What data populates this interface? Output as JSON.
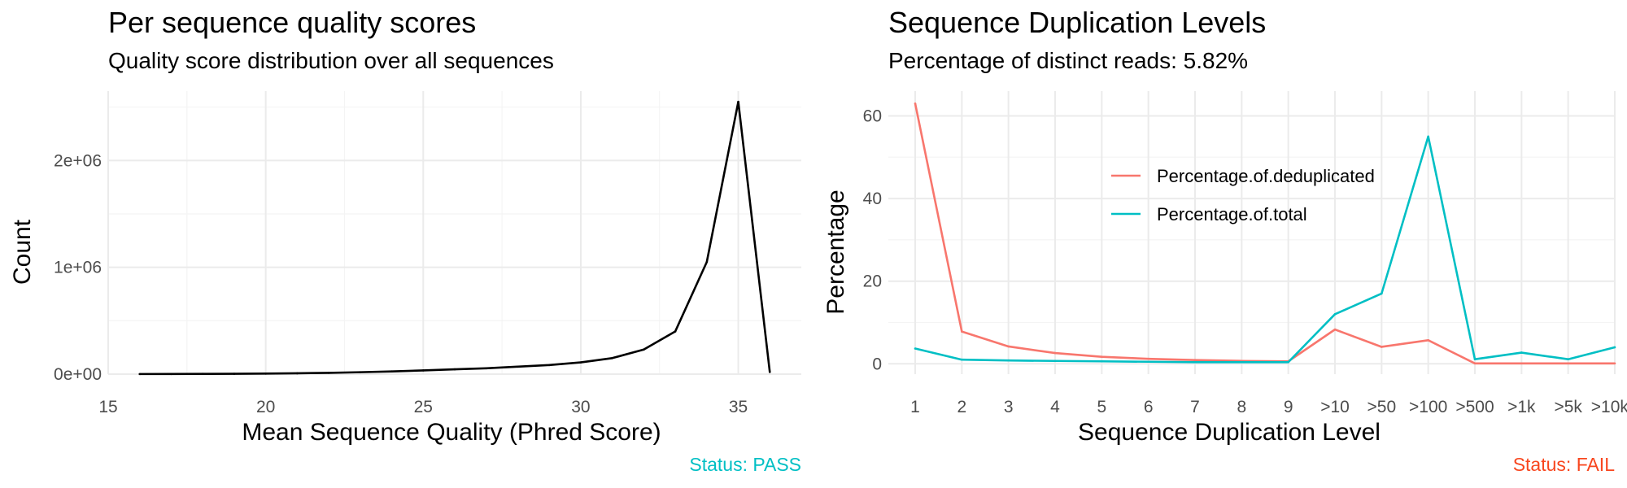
{
  "chart_data": [
    {
      "type": "line",
      "title": "Per sequence quality scores",
      "subtitle": "Quality score distribution over all sequences",
      "xlabel": "Mean Sequence Quality (Phred Score)",
      "ylabel": "Count",
      "xlim": [
        15,
        37
      ],
      "ylim": [
        0,
        2650000
      ],
      "x_ticks": [
        15,
        20,
        25,
        30,
        35
      ],
      "x_tick_labels": [
        "15",
        "20",
        "25",
        "30",
        "35"
      ],
      "y_ticks": [
        0,
        1000000,
        2000000
      ],
      "y_tick_labels": [
        "0e+00",
        "1e+06",
        "2e+06"
      ],
      "grid": true,
      "status": "Status: PASS",
      "status_color": "#00BFC4",
      "series": [
        {
          "color": "#000000",
          "x": [
            16,
            17,
            18,
            19,
            20,
            21,
            22,
            23,
            24,
            25,
            26,
            27,
            28,
            29,
            30,
            31,
            32,
            33,
            34,
            35,
            36
          ],
          "y": [
            1000,
            1500,
            2000,
            3000,
            5000,
            8000,
            12000,
            18000,
            25000,
            35000,
            45000,
            55000,
            70000,
            85000,
            110000,
            150000,
            230000,
            400000,
            1050000,
            2550000,
            20000
          ]
        }
      ]
    },
    {
      "type": "line",
      "title": "Sequence Duplication Levels",
      "subtitle": "Percentage of distinct reads: 5.82%",
      "xlabel": "Sequence Duplication Level",
      "ylabel": "Percentage",
      "categories": [
        "1",
        "2",
        "3",
        "4",
        "5",
        "6",
        "7",
        "8",
        "9",
        ">10",
        ">50",
        ">100",
        ">500",
        ">1k",
        ">5k",
        ">10k+"
      ],
      "ylim": [
        -2.5,
        66
      ],
      "y_ticks": [
        0,
        20,
        40,
        60
      ],
      "y_tick_labels": [
        "0",
        "20",
        "40",
        "60"
      ],
      "grid": true,
      "legend_position": "inside-top-center",
      "status": "Status: FAIL",
      "status_color": "#F8461E",
      "series": [
        {
          "name": "Percentage.of.deduplicated",
          "color": "#F8766D",
          "values": [
            63,
            7.8,
            4.2,
            2.6,
            1.7,
            1.2,
            0.9,
            0.7,
            0.6,
            8.3,
            4.1,
            5.7,
            0.1,
            0.1,
            0.1,
            0.1
          ]
        },
        {
          "name": "Percentage.of.total",
          "color": "#00BFC4",
          "values": [
            3.7,
            1.0,
            0.8,
            0.7,
            0.6,
            0.5,
            0.4,
            0.4,
            0.4,
            12,
            17,
            55,
            1.1,
            2.7,
            1.1,
            4.0
          ]
        }
      ]
    }
  ]
}
